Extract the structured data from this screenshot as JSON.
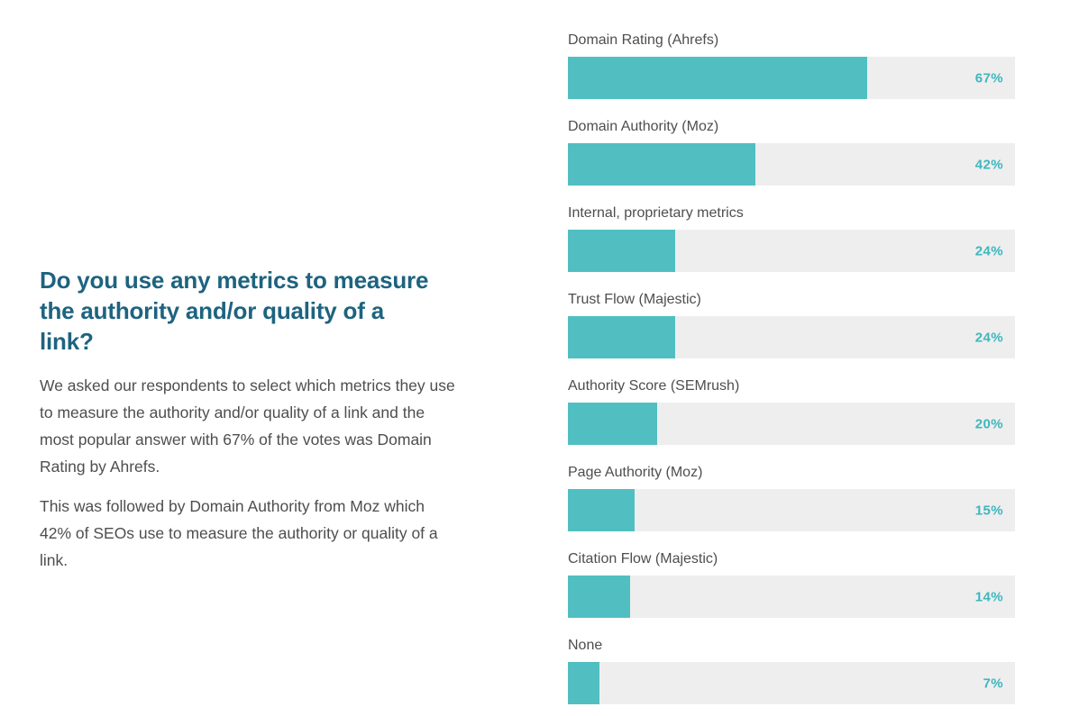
{
  "page": {
    "background": "#ffffff",
    "accent_color": "#51bfc1",
    "track_color": "#eeeeee",
    "heading_color": "#1e637f",
    "body_text_color": "#4e4e4e",
    "value_label_color": "#3eb6bd"
  },
  "article": {
    "heading": "Do you use any metrics to measure\nthe authority and/or quality of a\nlink?",
    "paragraphs": [
      "We asked our respondents to select which metrics they use\nto measure the authority and/or quality of a link and the\nmost popular answer with 67% of the votes was Domain\nRating by Ahrefs.",
      "This was followed by Domain Authority from Moz which\n42% of SEOs use to measure the authority or quality of a\nlink."
    ]
  },
  "chart_data": {
    "type": "bar",
    "orientation": "horizontal",
    "title": "Do you use any metrics to measure the authority and/or quality of a link?",
    "categories": [
      "Domain Rating (Ahrefs)",
      "Domain Authority (Moz)",
      "Internal, proprietary metrics",
      "Trust Flow (Majestic)",
      "Authority Score (SEMrush)",
      "Page Authority (Moz)",
      "Citation Flow (Majestic)",
      "None"
    ],
    "values": [
      67,
      42,
      24,
      24,
      20,
      15,
      14,
      7
    ],
    "value_labels": [
      "67%",
      "42%",
      "24%",
      "24%",
      "20%",
      "15%",
      "14%",
      "7%"
    ],
    "xlim": [
      0,
      100
    ],
    "grid": false,
    "legend": false,
    "bar_color": "#51bfc1",
    "track_color": "#eeeeee",
    "value_label_color": "#3eb6bd"
  }
}
